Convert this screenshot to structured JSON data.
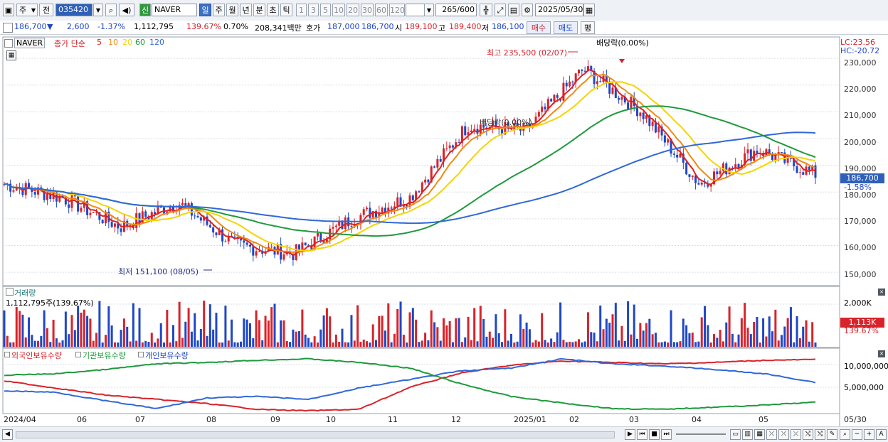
{
  "toolbar": {
    "period_label": "주",
    "prev_label": "전",
    "code_value": "035420",
    "new_badge": "신",
    "stock_name": "NAVER",
    "period_buttons": [
      "일",
      "주",
      "월",
      "년",
      "분",
      "초",
      "틱"
    ],
    "period_selected": "일",
    "interval_buttons": [
      "1",
      "3",
      "5",
      "10",
      "20",
      "30",
      "60",
      "120"
    ],
    "count_value": "265",
    "count_max": "/600",
    "date_value": "2025/05/30"
  },
  "quote": {
    "price": "186,700",
    "change_arrow": "▼",
    "change": "2,600",
    "change_pct": "-1.37%",
    "volume": "1,112,795",
    "vol_ratio": "139.67%",
    "turnover_pct": "0.70%",
    "amount": "208,341백만",
    "hoga_label": "호가",
    "ask": "187,000",
    "bid": "186,700",
    "open_label": "시",
    "open": "189,100",
    "high_label": "고",
    "high": "189,400",
    "low_label": "저",
    "low": "186,100",
    "buy_label": "매수",
    "sell_label": "매도",
    "eval_label": "평"
  },
  "legend": {
    "name": "NAVER",
    "line_label": "종가 단순",
    "ma": [
      {
        "label": "5",
        "color": "#e02020"
      },
      {
        "label": "10",
        "color": "#f08a12"
      },
      {
        "label": "20",
        "color": "#f5d400"
      },
      {
        "label": "60",
        "color": "#1e9a3c"
      },
      {
        "label": "120",
        "color": "#3068d8"
      }
    ]
  },
  "price_panel": {
    "lc": "LC:23.56",
    "hc": "HC:-20.72",
    "current_box": "186,700",
    "current_pct": "-1.58%",
    "annotations": {
      "high": "최고 235,500 (02/07)",
      "low": "최저 151,100 (08/05)",
      "div1": "배당락(0.00%)",
      "div2": "배당락(0.00%)"
    },
    "ticks": [
      "230,000",
      "220,000",
      "210,000",
      "200,000",
      "190,000",
      "180,000",
      "170,000",
      "160,000",
      "150,000"
    ]
  },
  "volume_panel": {
    "title": "거래량",
    "value": "1,112,795주(139.67%)",
    "tick": "2,000K",
    "current_box": "1,113K",
    "current_pct": "139.67%"
  },
  "holding_panel": {
    "series": [
      {
        "label": "외국인보유수량",
        "color": "#d8232a"
      },
      {
        "label": "기관보유수량",
        "color": "#1e9a3c"
      },
      {
        "label": "개인보유수량",
        "color": "#3068d8"
      }
    ],
    "ticks": [
      "10,000,000",
      "5,000,000"
    ]
  },
  "x_axis": {
    "labels": [
      "2024/04",
      "06",
      "07",
      "08",
      "09",
      "10",
      "11",
      "12",
      "2025/01",
      "02",
      "03",
      "04",
      "05",
      "05/30"
    ]
  },
  "colors": {
    "up": "#d8232a",
    "down": "#1f47c7",
    "accent": "#3b6fc4"
  },
  "chart_data": {
    "type": "line",
    "title": "",
    "ylim": [
      145000,
      238000
    ],
    "x_range": [
      "2024/04",
      "2025/05/30"
    ],
    "series": [
      {
        "name": "NAVER",
        "points": [
          [
            "2024/04",
            183000
          ],
          [
            "2024/05",
            178000
          ],
          [
            "2024/06",
            167000
          ],
          [
            "2024/07",
            176000
          ],
          [
            "2024/08",
            160000
          ],
          [
            "2024/09",
            157000
          ],
          [
            "2024/10",
            170000
          ],
          [
            "2024/11",
            178000
          ],
          [
            "2024/12",
            205000
          ],
          [
            "2025/01",
            203000
          ],
          [
            "2025/02",
            226000
          ],
          [
            "2025/03",
            210000
          ],
          [
            "2025/04",
            183000
          ],
          [
            "2025/05",
            196000
          ],
          [
            "2025/05/30",
            186700
          ]
        ]
      }
    ],
    "high": {
      "date": "02/07",
      "value": 235500
    },
    "low": {
      "date": "08/05",
      "value": 151100
    }
  }
}
